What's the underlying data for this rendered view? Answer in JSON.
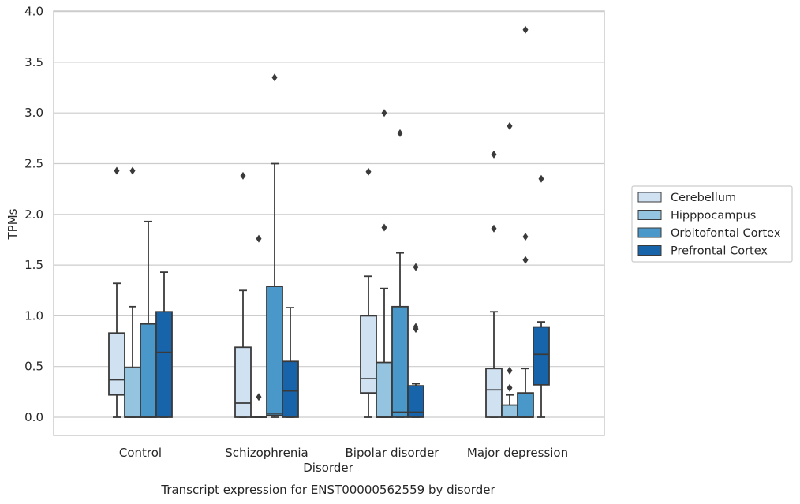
{
  "chart_data": {
    "type": "boxplot",
    "title": "",
    "caption": "Transcript expression for ENST00000562559 by disorder",
    "xlabel": "Disorder",
    "ylabel": "TPMs",
    "ylim": [
      -0.18,
      4.02
    ],
    "yticks": [
      "0.0",
      "0.5",
      "1.0",
      "1.5",
      "2.0",
      "2.5",
      "3.0",
      "3.5",
      "4.0"
    ],
    "ytick_values": [
      0,
      0.5,
      1.0,
      1.5,
      2.0,
      2.5,
      3.0,
      3.5,
      4.0
    ],
    "grid": true,
    "legend_position": "right",
    "categories": [
      "Control",
      "Schizophrenia",
      "Bipolar disorder",
      "Major depression"
    ],
    "series": [
      {
        "name": "Cerebellum",
        "color": "#d0e1f2",
        "boxes": [
          {
            "whislo": 0.0,
            "q1": 0.22,
            "med": 0.37,
            "q3": 0.83,
            "whishi": 1.32,
            "fliers": [
              2.43
            ]
          },
          {
            "whislo": 0.0,
            "q1": 0.0,
            "med": 0.14,
            "q3": 0.69,
            "whishi": 1.25,
            "fliers": [
              2.38
            ]
          },
          {
            "whislo": 0.0,
            "q1": 0.24,
            "med": 0.38,
            "q3": 1.0,
            "whishi": 1.39,
            "fliers": [
              2.42
            ]
          },
          {
            "whislo": 0.0,
            "q1": 0.0,
            "med": 0.27,
            "q3": 0.48,
            "whishi": 1.04,
            "fliers": [
              1.86,
              2.59
            ]
          }
        ]
      },
      {
        "name": "Hipppocampus",
        "color": "#94c4df",
        "boxes": [
          {
            "whislo": 0.0,
            "q1": 0.0,
            "med": 0.0,
            "q3": 0.49,
            "whishi": 1.09,
            "fliers": [
              2.43
            ]
          },
          {
            "whislo": 0.0,
            "q1": 0.0,
            "med": 0.0,
            "q3": 0.0,
            "whishi": 0.0,
            "fliers": [
              0.2,
              1.76
            ]
          },
          {
            "whislo": 0.0,
            "q1": 0.0,
            "med": 0.0,
            "q3": 0.54,
            "whishi": 1.27,
            "fliers": [
              1.87,
              3.0
            ]
          },
          {
            "whislo": 0.0,
            "q1": 0.0,
            "med": 0.0,
            "q3": 0.12,
            "whishi": 0.22,
            "fliers": [
              0.29,
              0.46,
              2.87
            ]
          }
        ]
      },
      {
        "name": "Orbitofontal Cortex",
        "color": "#4a98c9",
        "boxes": [
          {
            "whislo": 0.0,
            "q1": 0.0,
            "med": 0.0,
            "q3": 0.92,
            "whishi": 1.93,
            "fliers": []
          },
          {
            "whislo": 0.0,
            "q1": 0.02,
            "med": 0.04,
            "q3": 1.29,
            "whishi": 2.5,
            "fliers": [
              3.35
            ]
          },
          {
            "whislo": 0.0,
            "q1": 0.0,
            "med": 0.05,
            "q3": 1.09,
            "whishi": 1.62,
            "fliers": [
              2.8
            ]
          },
          {
            "whislo": 0.0,
            "q1": 0.0,
            "med": 0.0,
            "q3": 0.24,
            "whishi": 0.48,
            "fliers": [
              1.55,
              1.78,
              3.82
            ]
          }
        ]
      },
      {
        "name": "Prefrontal Cortex",
        "color": "#1764ab",
        "boxes": [
          {
            "whislo": 0.0,
            "q1": 0.0,
            "med": 0.64,
            "q3": 1.04,
            "whishi": 1.43,
            "fliers": []
          },
          {
            "whislo": 0.0,
            "q1": 0.0,
            "med": 0.26,
            "q3": 0.55,
            "whishi": 1.08,
            "fliers": []
          },
          {
            "whislo": 0.0,
            "q1": 0.0,
            "med": 0.05,
            "q3": 0.31,
            "whishi": 0.33,
            "fliers": [
              0.87,
              0.89,
              1.48
            ]
          },
          {
            "whislo": 0.0,
            "q1": 0.32,
            "med": 0.62,
            "q3": 0.89,
            "whishi": 0.94,
            "fliers": [
              2.35
            ]
          }
        ]
      }
    ]
  }
}
